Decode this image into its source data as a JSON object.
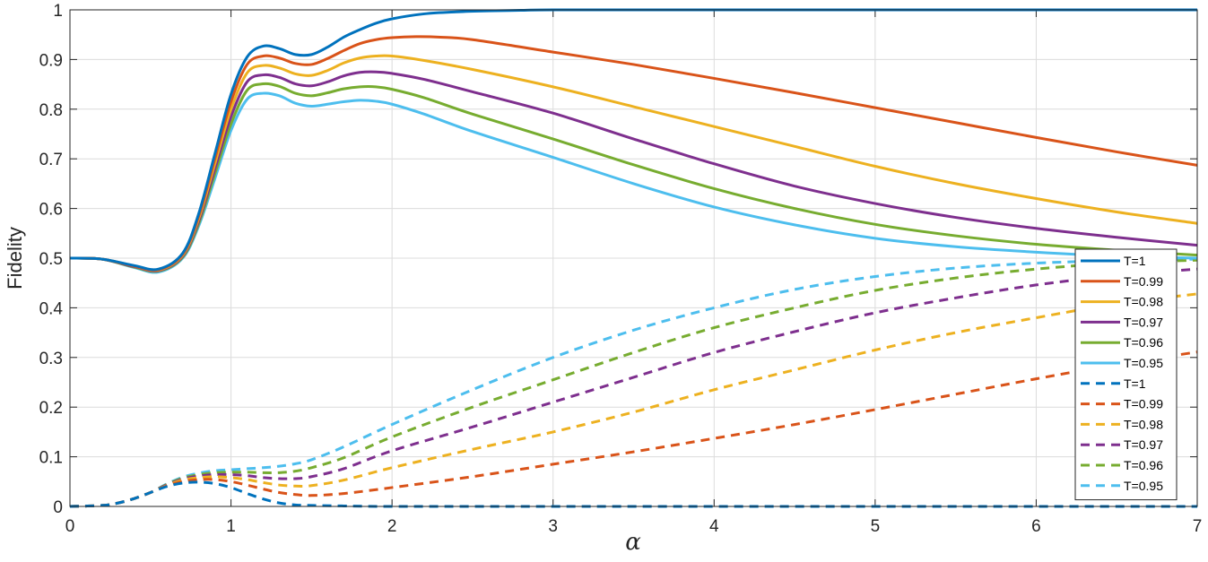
{
  "chart_data": {
    "type": "line",
    "title": "",
    "xlabel": "α",
    "ylabel": "Fidelity",
    "xlim": [
      0,
      7
    ],
    "ylim": [
      0,
      1
    ],
    "xticks": [
      0,
      1,
      2,
      3,
      4,
      5,
      6,
      7
    ],
    "xtick_labels": [
      "0",
      "1",
      "2",
      "3",
      "4",
      "5",
      "6",
      "7"
    ],
    "yticks": [
      0,
      0.1,
      0.2,
      0.3,
      0.4,
      0.5,
      0.6,
      0.7,
      0.8,
      0.9,
      1
    ],
    "ytick_labels": [
      "0",
      "0.1",
      "0.2",
      "0.3",
      "0.4",
      "0.5",
      "0.6",
      "0.7",
      "0.8",
      "0.9",
      "1"
    ],
    "grid": true,
    "legend_position": "right",
    "series": [
      {
        "name": "T=1",
        "color": "#0072BD",
        "dash": "solid",
        "x": [
          0,
          0.2,
          0.4,
          0.55,
          0.7,
          0.8,
          0.9,
          1.0,
          1.1,
          1.2,
          1.3,
          1.4,
          1.5,
          1.6,
          1.7,
          1.8,
          1.9,
          2.0,
          2.2,
          2.4,
          2.6,
          2.8,
          3.0,
          4.0,
          5.0,
          6.0,
          7.0
        ],
        "y": [
          0.5,
          0.498,
          0.485,
          0.478,
          0.51,
          0.59,
          0.71,
          0.83,
          0.905,
          0.927,
          0.922,
          0.91,
          0.91,
          0.925,
          0.945,
          0.96,
          0.973,
          0.982,
          0.992,
          0.996,
          0.998,
          0.999,
          1.0,
          1.0,
          1.0,
          1.0,
          1.0
        ]
      },
      {
        "name": "T=0.99",
        "color": "#D95319",
        "dash": "solid",
        "x": [
          0,
          0.2,
          0.4,
          0.55,
          0.7,
          0.8,
          0.9,
          1.0,
          1.1,
          1.2,
          1.3,
          1.4,
          1.5,
          1.6,
          1.7,
          1.8,
          1.9,
          2.0,
          2.15,
          2.3,
          2.5,
          3.0,
          3.5,
          4.0,
          4.5,
          5.0,
          5.5,
          6.0,
          6.5,
          7.0
        ],
        "y": [
          0.5,
          0.498,
          0.484,
          0.477,
          0.508,
          0.585,
          0.7,
          0.815,
          0.89,
          0.907,
          0.903,
          0.892,
          0.89,
          0.902,
          0.918,
          0.932,
          0.94,
          0.944,
          0.946,
          0.945,
          0.94,
          0.915,
          0.89,
          0.862,
          0.833,
          0.803,
          0.773,
          0.743,
          0.714,
          0.687
        ]
      },
      {
        "name": "T=0.98",
        "color": "#EDB120",
        "dash": "solid",
        "x": [
          0,
          0.2,
          0.4,
          0.55,
          0.7,
          0.8,
          0.9,
          1.0,
          1.1,
          1.2,
          1.3,
          1.4,
          1.5,
          1.6,
          1.7,
          1.8,
          1.9,
          2.0,
          2.2,
          2.5,
          3.0,
          3.5,
          4.0,
          4.5,
          5.0,
          5.5,
          6.0,
          6.5,
          7.0
        ],
        "y": [
          0.5,
          0.498,
          0.484,
          0.476,
          0.506,
          0.58,
          0.69,
          0.8,
          0.873,
          0.888,
          0.883,
          0.871,
          0.868,
          0.878,
          0.893,
          0.903,
          0.907,
          0.907,
          0.898,
          0.88,
          0.845,
          0.805,
          0.765,
          0.725,
          0.685,
          0.65,
          0.62,
          0.593,
          0.57
        ]
      },
      {
        "name": "T=0.97",
        "color": "#7E2F8E",
        "dash": "solid",
        "x": [
          0,
          0.2,
          0.4,
          0.55,
          0.7,
          0.8,
          0.9,
          1.0,
          1.1,
          1.2,
          1.3,
          1.4,
          1.5,
          1.6,
          1.7,
          1.8,
          1.9,
          2.0,
          2.2,
          2.5,
          3.0,
          3.5,
          4.0,
          4.5,
          5.0,
          5.5,
          6.0,
          6.5,
          7.0
        ],
        "y": [
          0.5,
          0.498,
          0.483,
          0.475,
          0.504,
          0.575,
          0.68,
          0.785,
          0.855,
          0.869,
          0.864,
          0.851,
          0.847,
          0.855,
          0.867,
          0.874,
          0.875,
          0.872,
          0.86,
          0.835,
          0.792,
          0.74,
          0.69,
          0.645,
          0.61,
          0.582,
          0.56,
          0.542,
          0.526
        ]
      },
      {
        "name": "T=0.96",
        "color": "#77AC30",
        "dash": "solid",
        "x": [
          0,
          0.2,
          0.4,
          0.55,
          0.7,
          0.8,
          0.9,
          1.0,
          1.1,
          1.2,
          1.3,
          1.4,
          1.5,
          1.6,
          1.7,
          1.8,
          1.9,
          2.0,
          2.2,
          2.5,
          3.0,
          3.5,
          4.0,
          4.5,
          5.0,
          5.5,
          6.0,
          6.5,
          7.0
        ],
        "y": [
          0.5,
          0.498,
          0.482,
          0.474,
          0.502,
          0.57,
          0.67,
          0.77,
          0.838,
          0.851,
          0.846,
          0.832,
          0.827,
          0.833,
          0.841,
          0.845,
          0.845,
          0.84,
          0.823,
          0.79,
          0.74,
          0.688,
          0.64,
          0.6,
          0.568,
          0.545,
          0.528,
          0.516,
          0.506
        ]
      },
      {
        "name": "T=0.95",
        "color": "#4DBEEE",
        "dash": "solid",
        "x": [
          0,
          0.2,
          0.4,
          0.55,
          0.7,
          0.8,
          0.9,
          1.0,
          1.1,
          1.2,
          1.3,
          1.4,
          1.5,
          1.6,
          1.7,
          1.8,
          1.9,
          2.0,
          2.2,
          2.5,
          3.0,
          3.5,
          4.0,
          4.5,
          5.0,
          5.5,
          6.0,
          6.5,
          7.0
        ],
        "y": [
          0.5,
          0.498,
          0.481,
          0.472,
          0.5,
          0.565,
          0.66,
          0.757,
          0.82,
          0.832,
          0.827,
          0.812,
          0.806,
          0.81,
          0.815,
          0.818,
          0.816,
          0.81,
          0.79,
          0.755,
          0.703,
          0.65,
          0.603,
          0.567,
          0.54,
          0.523,
          0.512,
          0.504,
          0.5
        ]
      },
      {
        "name": "T=1",
        "color": "#0072BD",
        "dash": "dashed",
        "x": [
          0,
          0.2,
          0.3,
          0.4,
          0.5,
          0.6,
          0.7,
          0.8,
          0.9,
          1.0,
          1.1,
          1.2,
          1.3,
          1.4,
          1.5,
          1.7,
          2.0,
          3.0,
          4.0,
          5.0,
          6.0,
          7.0
        ],
        "y": [
          0.0,
          0.002,
          0.007,
          0.016,
          0.028,
          0.04,
          0.047,
          0.049,
          0.046,
          0.038,
          0.026,
          0.015,
          0.007,
          0.003,
          0.002,
          0.001,
          0.0,
          0.0,
          0.0,
          0.0,
          0.0,
          0.0
        ]
      },
      {
        "name": "T=0.99",
        "color": "#D95319",
        "dash": "dashed",
        "x": [
          0,
          0.2,
          0.3,
          0.4,
          0.5,
          0.6,
          0.7,
          0.8,
          0.9,
          1.0,
          1.1,
          1.2,
          1.3,
          1.4,
          1.5,
          1.7,
          2.0,
          2.5,
          3.0,
          3.5,
          4.0,
          4.5,
          5.0,
          5.5,
          6.0,
          6.5,
          7.0
        ],
        "y": [
          0.0,
          0.002,
          0.007,
          0.016,
          0.028,
          0.041,
          0.05,
          0.054,
          0.054,
          0.05,
          0.043,
          0.035,
          0.028,
          0.024,
          0.022,
          0.026,
          0.038,
          0.06,
          0.085,
          0.11,
          0.137,
          0.165,
          0.195,
          0.226,
          0.257,
          0.286,
          0.311
        ]
      },
      {
        "name": "T=0.98",
        "color": "#EDB120",
        "dash": "dashed",
        "x": [
          0,
          0.2,
          0.3,
          0.4,
          0.5,
          0.6,
          0.7,
          0.8,
          0.9,
          1.0,
          1.1,
          1.2,
          1.3,
          1.4,
          1.5,
          1.7,
          2.0,
          2.5,
          3.0,
          3.5,
          4.0,
          4.5,
          5.0,
          5.5,
          6.0,
          6.5,
          7.0
        ],
        "y": [
          0.0,
          0.002,
          0.007,
          0.016,
          0.028,
          0.042,
          0.053,
          0.058,
          0.06,
          0.058,
          0.054,
          0.048,
          0.043,
          0.041,
          0.042,
          0.053,
          0.078,
          0.115,
          0.15,
          0.19,
          0.235,
          0.275,
          0.315,
          0.35,
          0.38,
          0.408,
          0.428
        ]
      },
      {
        "name": "T=0.97",
        "color": "#7E2F8E",
        "dash": "dashed",
        "x": [
          0,
          0.2,
          0.3,
          0.4,
          0.5,
          0.6,
          0.7,
          0.8,
          0.9,
          1.0,
          1.1,
          1.2,
          1.3,
          1.4,
          1.5,
          1.7,
          2.0,
          2.5,
          3.0,
          3.5,
          4.0,
          4.5,
          5.0,
          5.5,
          6.0,
          6.5,
          7.0
        ],
        "y": [
          0.0,
          0.002,
          0.007,
          0.016,
          0.028,
          0.043,
          0.055,
          0.061,
          0.064,
          0.064,
          0.062,
          0.058,
          0.056,
          0.056,
          0.06,
          0.076,
          0.112,
          0.16,
          0.21,
          0.26,
          0.31,
          0.352,
          0.39,
          0.42,
          0.446,
          0.465,
          0.478
        ]
      },
      {
        "name": "T=0.96",
        "color": "#77AC30",
        "dash": "dashed",
        "x": [
          0,
          0.2,
          0.3,
          0.4,
          0.5,
          0.6,
          0.7,
          0.8,
          0.9,
          1.0,
          1.1,
          1.2,
          1.3,
          1.4,
          1.5,
          1.7,
          2.0,
          2.5,
          3.0,
          3.5,
          4.0,
          4.5,
          5.0,
          5.5,
          6.0,
          6.5,
          7.0
        ],
        "y": [
          0.0,
          0.002,
          0.007,
          0.016,
          0.028,
          0.044,
          0.057,
          0.064,
          0.068,
          0.069,
          0.069,
          0.068,
          0.068,
          0.071,
          0.078,
          0.098,
          0.14,
          0.2,
          0.255,
          0.31,
          0.36,
          0.4,
          0.435,
          0.46,
          0.478,
          0.49,
          0.496
        ]
      },
      {
        "name": "T=0.95",
        "color": "#4DBEEE",
        "dash": "dashed",
        "x": [
          0,
          0.2,
          0.3,
          0.4,
          0.5,
          0.6,
          0.7,
          0.8,
          0.9,
          1.0,
          1.1,
          1.2,
          1.3,
          1.4,
          1.5,
          1.7,
          2.0,
          2.5,
          3.0,
          3.5,
          4.0,
          4.5,
          5.0,
          5.5,
          6.0,
          6.5,
          7.0
        ],
        "y": [
          0.0,
          0.002,
          0.007,
          0.016,
          0.028,
          0.045,
          0.059,
          0.067,
          0.072,
          0.074,
          0.076,
          0.078,
          0.081,
          0.086,
          0.094,
          0.12,
          0.165,
          0.235,
          0.3,
          0.355,
          0.4,
          0.437,
          0.463,
          0.48,
          0.49,
          0.495,
          0.498
        ]
      }
    ]
  }
}
